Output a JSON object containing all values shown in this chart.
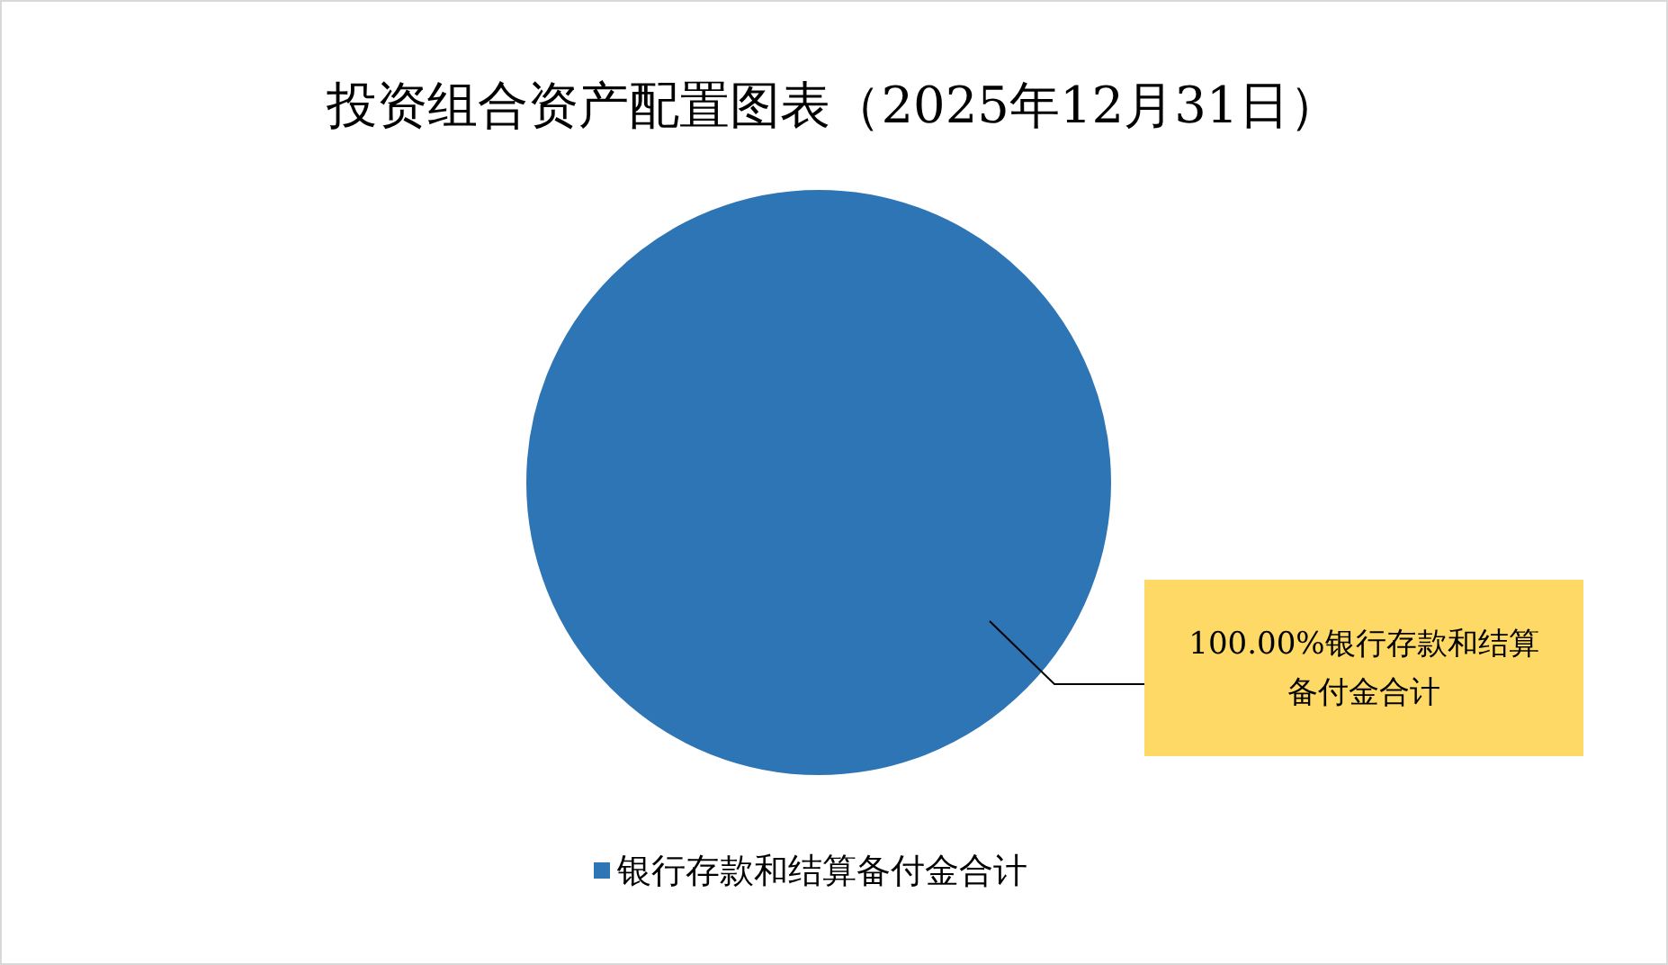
{
  "chart_data": {
    "type": "pie",
    "title": "投资组合资产配置图表（2025年12月31日）",
    "categories": [
      "银行存款和结算备付金合计"
    ],
    "values": [
      100
    ],
    "colors": [
      "#2e75b6"
    ],
    "value_labels": [
      "100.00%"
    ],
    "legend": "bottom"
  }
}
